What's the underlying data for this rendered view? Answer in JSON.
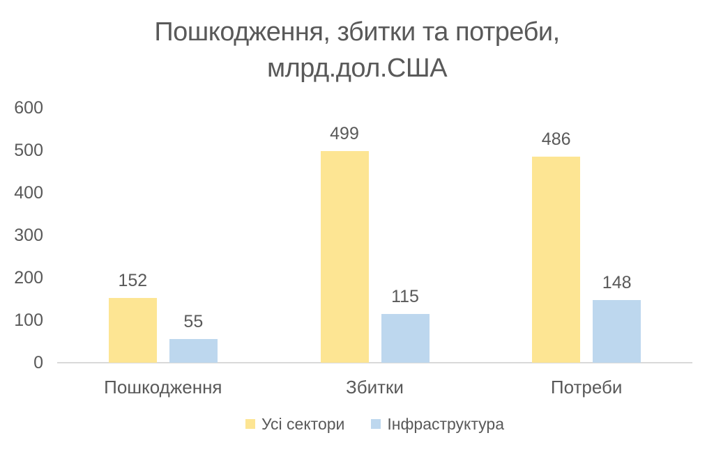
{
  "chart_data": {
    "type": "bar",
    "title_line1": "Пошкодження, збитки та потреби,",
    "title_line2": "млрд.дол.США",
    "categories": [
      "Пошкодження",
      "Збитки",
      "Потреби"
    ],
    "series": [
      {
        "name": "Усі сектори",
        "color": "#FDE593",
        "values": [
          152,
          499,
          486
        ]
      },
      {
        "name": "Інфраструктура",
        "color": "#BDD7EE",
        "values": [
          55,
          115,
          148
        ]
      }
    ],
    "ylim": [
      0,
      600
    ],
    "yticks": [
      0,
      100,
      200,
      300,
      400,
      500,
      600
    ],
    "grid": false,
    "data_labels": true,
    "legend_position": "bottom",
    "text_color": "#595959",
    "axis_line_color": "#D9D9D9"
  }
}
